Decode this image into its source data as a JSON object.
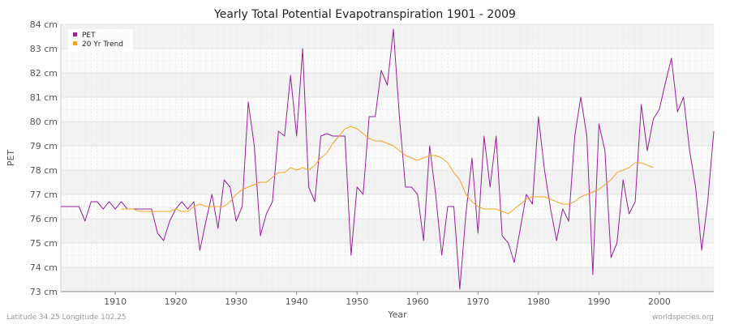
{
  "chart_data": {
    "type": "line",
    "title": "Yearly Total Potential Evapotranspiration 1901 - 2009",
    "xlabel": "Year",
    "ylabel": "PET",
    "xlim": [
      1901,
      2009
    ],
    "ylim": [
      73,
      84
    ],
    "x_ticks": [
      1910,
      1920,
      1930,
      1940,
      1950,
      1960,
      1970,
      1980,
      1990,
      2000
    ],
    "y_ticks": [
      {
        "value": 73,
        "label": "73 cm"
      },
      {
        "value": 74,
        "label": "74 cm"
      },
      {
        "value": 75,
        "label": "75 cm"
      },
      {
        "value": 76,
        "label": "76 cm"
      },
      {
        "value": 77,
        "label": "77 cm"
      },
      {
        "value": 78,
        "label": "78 cm"
      },
      {
        "value": 79,
        "label": "79 cm"
      },
      {
        "value": 80,
        "label": "80 cm"
      },
      {
        "value": 81,
        "label": "81 cm"
      },
      {
        "value": 82,
        "label": "82 cm"
      },
      {
        "value": 83,
        "label": "83 cm"
      },
      {
        "value": 84,
        "label": "84 cm"
      }
    ],
    "grid": true,
    "legend_position": "top-left",
    "series": [
      {
        "name": "PET",
        "color": "#9b1f9b",
        "x": [
          1901,
          1902,
          1903,
          1904,
          1905,
          1906,
          1907,
          1908,
          1909,
          1910,
          1911,
          1912,
          1913,
          1914,
          1915,
          1916,
          1917,
          1918,
          1919,
          1920,
          1921,
          1922,
          1923,
          1924,
          1925,
          1926,
          1927,
          1928,
          1929,
          1930,
          1931,
          1932,
          1933,
          1934,
          1935,
          1936,
          1937,
          1938,
          1939,
          1940,
          1941,
          1942,
          1943,
          1944,
          1945,
          1946,
          1947,
          1948,
          1949,
          1950,
          1951,
          1952,
          1953,
          1954,
          1955,
          1956,
          1957,
          1958,
          1959,
          1960,
          1961,
          1962,
          1963,
          1964,
          1965,
          1966,
          1967,
          1968,
          1969,
          1970,
          1971,
          1972,
          1973,
          1974,
          1975,
          1976,
          1977,
          1978,
          1979,
          1980,
          1981,
          1982,
          1983,
          1984,
          1985,
          1986,
          1987,
          1988,
          1989,
          1990,
          1991,
          1992,
          1993,
          1994,
          1995,
          1996,
          1997,
          1998,
          1999,
          2000,
          2001,
          2002,
          2003,
          2004,
          2005,
          2006,
          2007,
          2008,
          2009
        ],
        "values": [
          76.5,
          76.5,
          76.5,
          76.5,
          75.9,
          76.7,
          76.7,
          76.4,
          76.7,
          76.4,
          76.7,
          76.4,
          76.4,
          76.4,
          76.4,
          76.4,
          75.4,
          75.1,
          75.9,
          76.4,
          76.7,
          76.4,
          76.7,
          74.7,
          75.9,
          77.0,
          75.6,
          77.6,
          77.3,
          75.9,
          76.5,
          80.8,
          79.0,
          75.3,
          76.2,
          76.7,
          79.6,
          79.4,
          81.9,
          79.4,
          83.0,
          77.3,
          76.7,
          79.4,
          79.5,
          79.4,
          79.4,
          79.4,
          74.5,
          77.3,
          77.0,
          80.2,
          80.2,
          82.1,
          81.5,
          83.8,
          80.2,
          77.3,
          77.3,
          77.0,
          75.1,
          79.0,
          77.0,
          74.5,
          76.5,
          76.5,
          73.1,
          76.2,
          78.5,
          75.4,
          79.4,
          77.3,
          79.4,
          75.3,
          75.0,
          74.2,
          75.6,
          77.0,
          76.6,
          80.2,
          78.0,
          76.4,
          75.1,
          76.4,
          75.9,
          79.4,
          81.0,
          79.4,
          73.7,
          79.9,
          78.8,
          74.4,
          75.0,
          77.6,
          76.2,
          76.7,
          80.7,
          78.8,
          80.1,
          80.5,
          81.6,
          82.6,
          80.4,
          81.0,
          78.8,
          77.3,
          74.7,
          76.7,
          79.6
        ]
      },
      {
        "name": "20 Yr Trend",
        "color": "#f5a623",
        "x": [
          1911,
          1912,
          1913,
          1914,
          1915,
          1916,
          1917,
          1918,
          1919,
          1920,
          1921,
          1922,
          1923,
          1924,
          1925,
          1926,
          1927,
          1928,
          1929,
          1930,
          1931,
          1932,
          1933,
          1934,
          1935,
          1936,
          1937,
          1938,
          1939,
          1940,
          1941,
          1942,
          1943,
          1944,
          1945,
          1946,
          1947,
          1948,
          1949,
          1950,
          1951,
          1952,
          1953,
          1954,
          1955,
          1956,
          1957,
          1958,
          1959,
          1960,
          1961,
          1962,
          1963,
          1964,
          1965,
          1966,
          1967,
          1968,
          1969,
          1970,
          1971,
          1972,
          1973,
          1974,
          1975,
          1976,
          1977,
          1978,
          1979,
          1980,
          1981,
          1982,
          1983,
          1984,
          1985,
          1986,
          1987,
          1988,
          1989,
          1990,
          1991,
          1992,
          1993,
          1994,
          1995,
          1996,
          1997,
          1998,
          1999
        ],
        "values": [
          76.4,
          76.4,
          76.4,
          76.3,
          76.3,
          76.3,
          76.3,
          76.3,
          76.3,
          76.4,
          76.3,
          76.3,
          76.5,
          76.6,
          76.5,
          76.5,
          76.5,
          76.5,
          76.7,
          77.0,
          77.2,
          77.3,
          77.4,
          77.5,
          77.5,
          77.7,
          77.9,
          77.9,
          78.1,
          78.0,
          78.1,
          78.0,
          78.2,
          78.5,
          78.7,
          79.1,
          79.4,
          79.7,
          79.8,
          79.7,
          79.5,
          79.3,
          79.2,
          79.2,
          79.1,
          79.0,
          78.8,
          78.6,
          78.5,
          78.4,
          78.5,
          78.6,
          78.6,
          78.5,
          78.3,
          77.9,
          77.6,
          77.0,
          76.7,
          76.5,
          76.4,
          76.4,
          76.4,
          76.3,
          76.2,
          76.4,
          76.6,
          76.8,
          76.9,
          76.9,
          76.9,
          76.8,
          76.7,
          76.6,
          76.6,
          76.7,
          76.9,
          77.0,
          77.1,
          77.2,
          77.4,
          77.6,
          77.9,
          78.0,
          78.1,
          78.3,
          78.3,
          78.2,
          78.1
        ]
      }
    ]
  },
  "footer": {
    "left": "Latitude 34.25 Longitude 102.25",
    "right": "worldspecies.org"
  },
  "colors": {
    "plot_background": "#f2f2f2",
    "band_alt": "#fafafa",
    "grid": "#dddddd"
  }
}
